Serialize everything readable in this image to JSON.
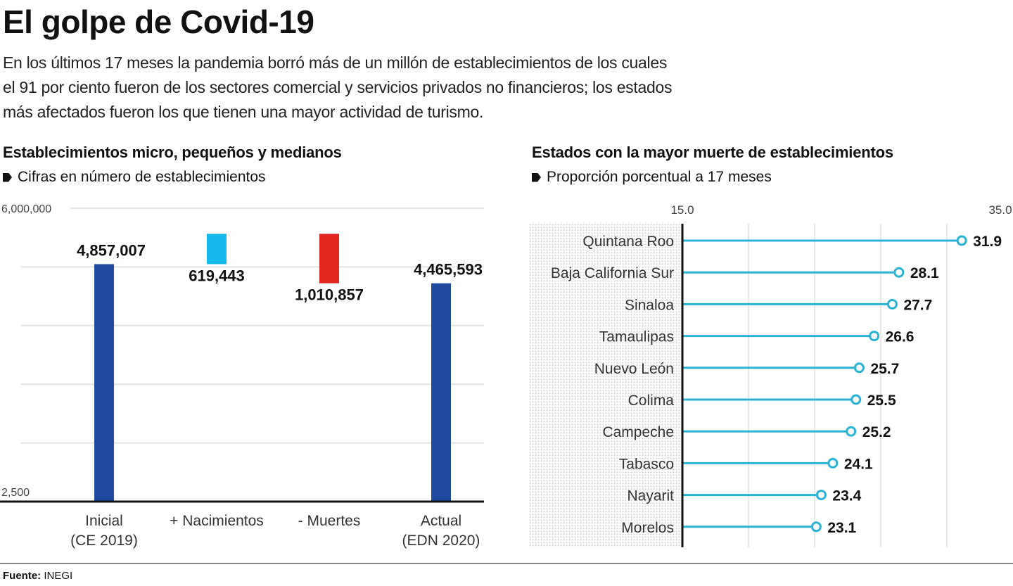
{
  "header": {
    "title": "El golpe de Covid-19",
    "intro_lines": [
      "En los últimos 17 meses la pandemia borró más de un millón de establecimientos de los cuales",
      "el 91 por ciento fueron de los sectores comercial y servicios privados no financieros; los estados",
      "más afectados fueron los que tienen una mayor actividad de turismo."
    ]
  },
  "left_chart": {
    "title": "Establecimientos micro, pequeños y medianos",
    "subtitle": "Cifras en número de establecimientos"
  },
  "right_chart": {
    "title": "Estados con la mayor muerte de establecimientos",
    "subtitle": "Proporción porcentual a 17 meses"
  },
  "footer": {
    "source_label": "Fuente:",
    "source_value": "INEGI"
  },
  "colors": {
    "stock_bar": "#1f4a9e",
    "births_bar": "#14b8ea",
    "deaths_bar": "#e0261e",
    "lollipop": "#2bb3d6"
  },
  "chart_data": [
    {
      "type": "bar",
      "subtype": "waterfall",
      "title": "Establecimientos micro, pequeños y medianos",
      "subtitle": "Cifras en número de establecimientos",
      "categories": [
        [
          "Inicial",
          "(CE 2019)"
        ],
        [
          "+ Nacimientos"
        ],
        [
          "- Muertes"
        ],
        [
          "Actual",
          "(EDN 2020)"
        ]
      ],
      "values": [
        4857007,
        619443,
        -1010857,
        4465593
      ],
      "value_labels": [
        "4,857,007",
        "619,443",
        "1,010,857",
        "4,465,593"
      ],
      "bar_kinds": [
        "total",
        "increase",
        "decrease",
        "total"
      ],
      "ylim": [
        2500,
        6000000
      ],
      "ytick_labels": [
        "2,500",
        "6,000,000"
      ],
      "grid": true,
      "xlabel": "",
      "ylabel": ""
    },
    {
      "type": "lollipop",
      "title": "Estados con la mayor muerte de establecimientos",
      "subtitle": "Proporción porcentual a 17 meses",
      "categories": [
        "Quintana Roo",
        "Baja California Sur",
        "Sinaloa",
        "Tamaulipas",
        "Nuevo León",
        "Colima",
        "Campeche",
        "Tabasco",
        "Nayarit",
        "Morelos"
      ],
      "values": [
        31.9,
        28.1,
        27.7,
        26.6,
        25.7,
        25.5,
        25.2,
        24.1,
        23.4,
        23.1
      ],
      "value_labels": [
        "31.9",
        "28.1",
        "27.7",
        "26.6",
        "25.7",
        "25.5",
        "25.2",
        "24.1",
        "23.4",
        "23.1"
      ],
      "xlim": [
        15.0,
        35.0
      ],
      "xtick_labels": [
        "15.0",
        "35.0"
      ],
      "grid": true,
      "xlabel": "",
      "ylabel": ""
    }
  ]
}
